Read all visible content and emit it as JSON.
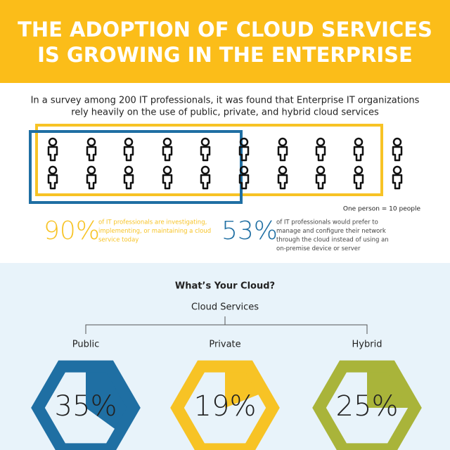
{
  "header": {
    "title_lines": [
      "THE ADOPTION OF CLOUD SERVICES",
      "IS GROWING IN THE ENTERPRISE"
    ]
  },
  "intro": {
    "lines": [
      "In a survey among 200 IT professionals, it was found that Enterprise IT organizations",
      "rely heavily on the use of public, private, and hybrid cloud services"
    ]
  },
  "legend": "One person = 10 people",
  "stats": [
    {
      "value": "90%",
      "color": "#f7c325",
      "text_color": "#f7c325",
      "lines": [
        "of IT professionals are investigating,",
        "implementing, or maintaining a cloud",
        "service today"
      ]
    },
    {
      "value": "53%",
      "color": "#1f6fa3",
      "text_color": "#444444",
      "lines": [
        "of IT professionals would prefer to",
        "manage and configure their network",
        "through the cloud instead of using an",
        "on-premise device or server"
      ]
    }
  ],
  "cloud": {
    "title": "What’s Your Cloud?",
    "root": "Cloud Services",
    "items": [
      {
        "name": "Public",
        "value": 35,
        "value_label": "35%",
        "color": "#1f6fa3"
      },
      {
        "name": "Private",
        "value": 19,
        "value_label": "19%",
        "color": "#f7c325"
      },
      {
        "name": "Hybrid",
        "value": 25,
        "value_label": "25%",
        "color": "#a9b43a"
      }
    ]
  }
}
